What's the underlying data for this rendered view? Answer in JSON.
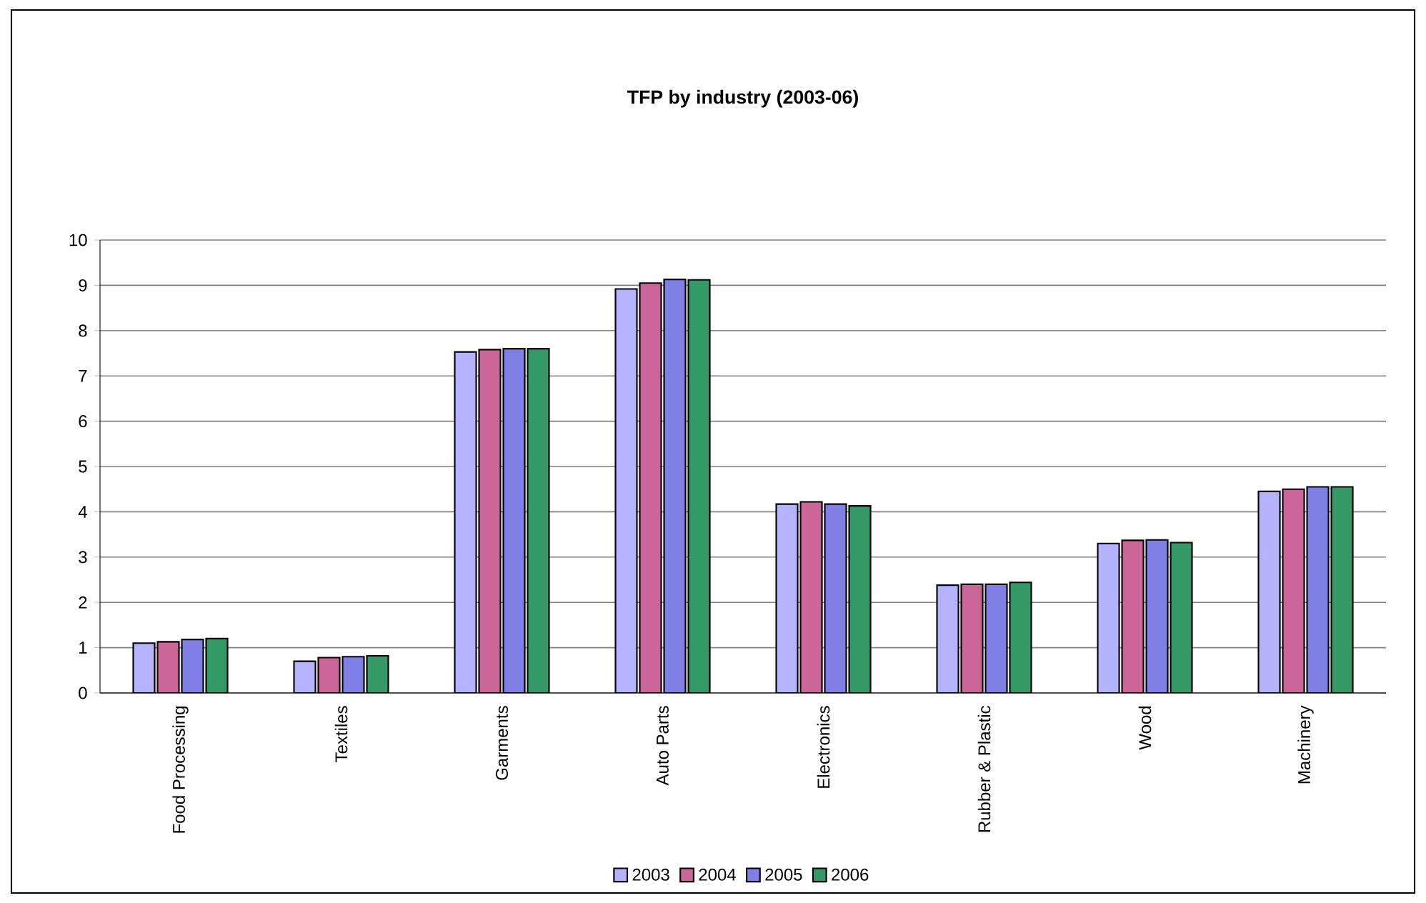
{
  "chart_data": {
    "type": "bar",
    "title": "TFP by industry (2003-06)",
    "categories": [
      "Food Processing",
      "Textiles",
      "Garments",
      "Auto Parts",
      "Electronics",
      "Rubber & Plastic",
      "Wood",
      "Machinery"
    ],
    "series": [
      {
        "name": "2003",
        "color": "#b3b3ff",
        "values": [
          1.1,
          0.7,
          7.53,
          8.92,
          4.17,
          2.38,
          3.3,
          4.45
        ]
      },
      {
        "name": "2004",
        "color": "#cc6699",
        "values": [
          1.13,
          0.78,
          7.58,
          9.05,
          4.22,
          2.4,
          3.37,
          4.5
        ]
      },
      {
        "name": "2005",
        "color": "#7f7fe6",
        "values": [
          1.18,
          0.8,
          7.6,
          9.13,
          4.17,
          2.4,
          3.38,
          4.55
        ]
      },
      {
        "name": "2006",
        "color": "#339966",
        "values": [
          1.2,
          0.82,
          7.6,
          9.12,
          4.13,
          2.44,
          3.32,
          4.55
        ]
      }
    ],
    "ylim": [
      0,
      10
    ],
    "yticks": [
      0,
      1,
      2,
      3,
      4,
      5,
      6,
      7,
      8,
      9,
      10
    ],
    "grid": "y",
    "legend": "bottom"
  }
}
